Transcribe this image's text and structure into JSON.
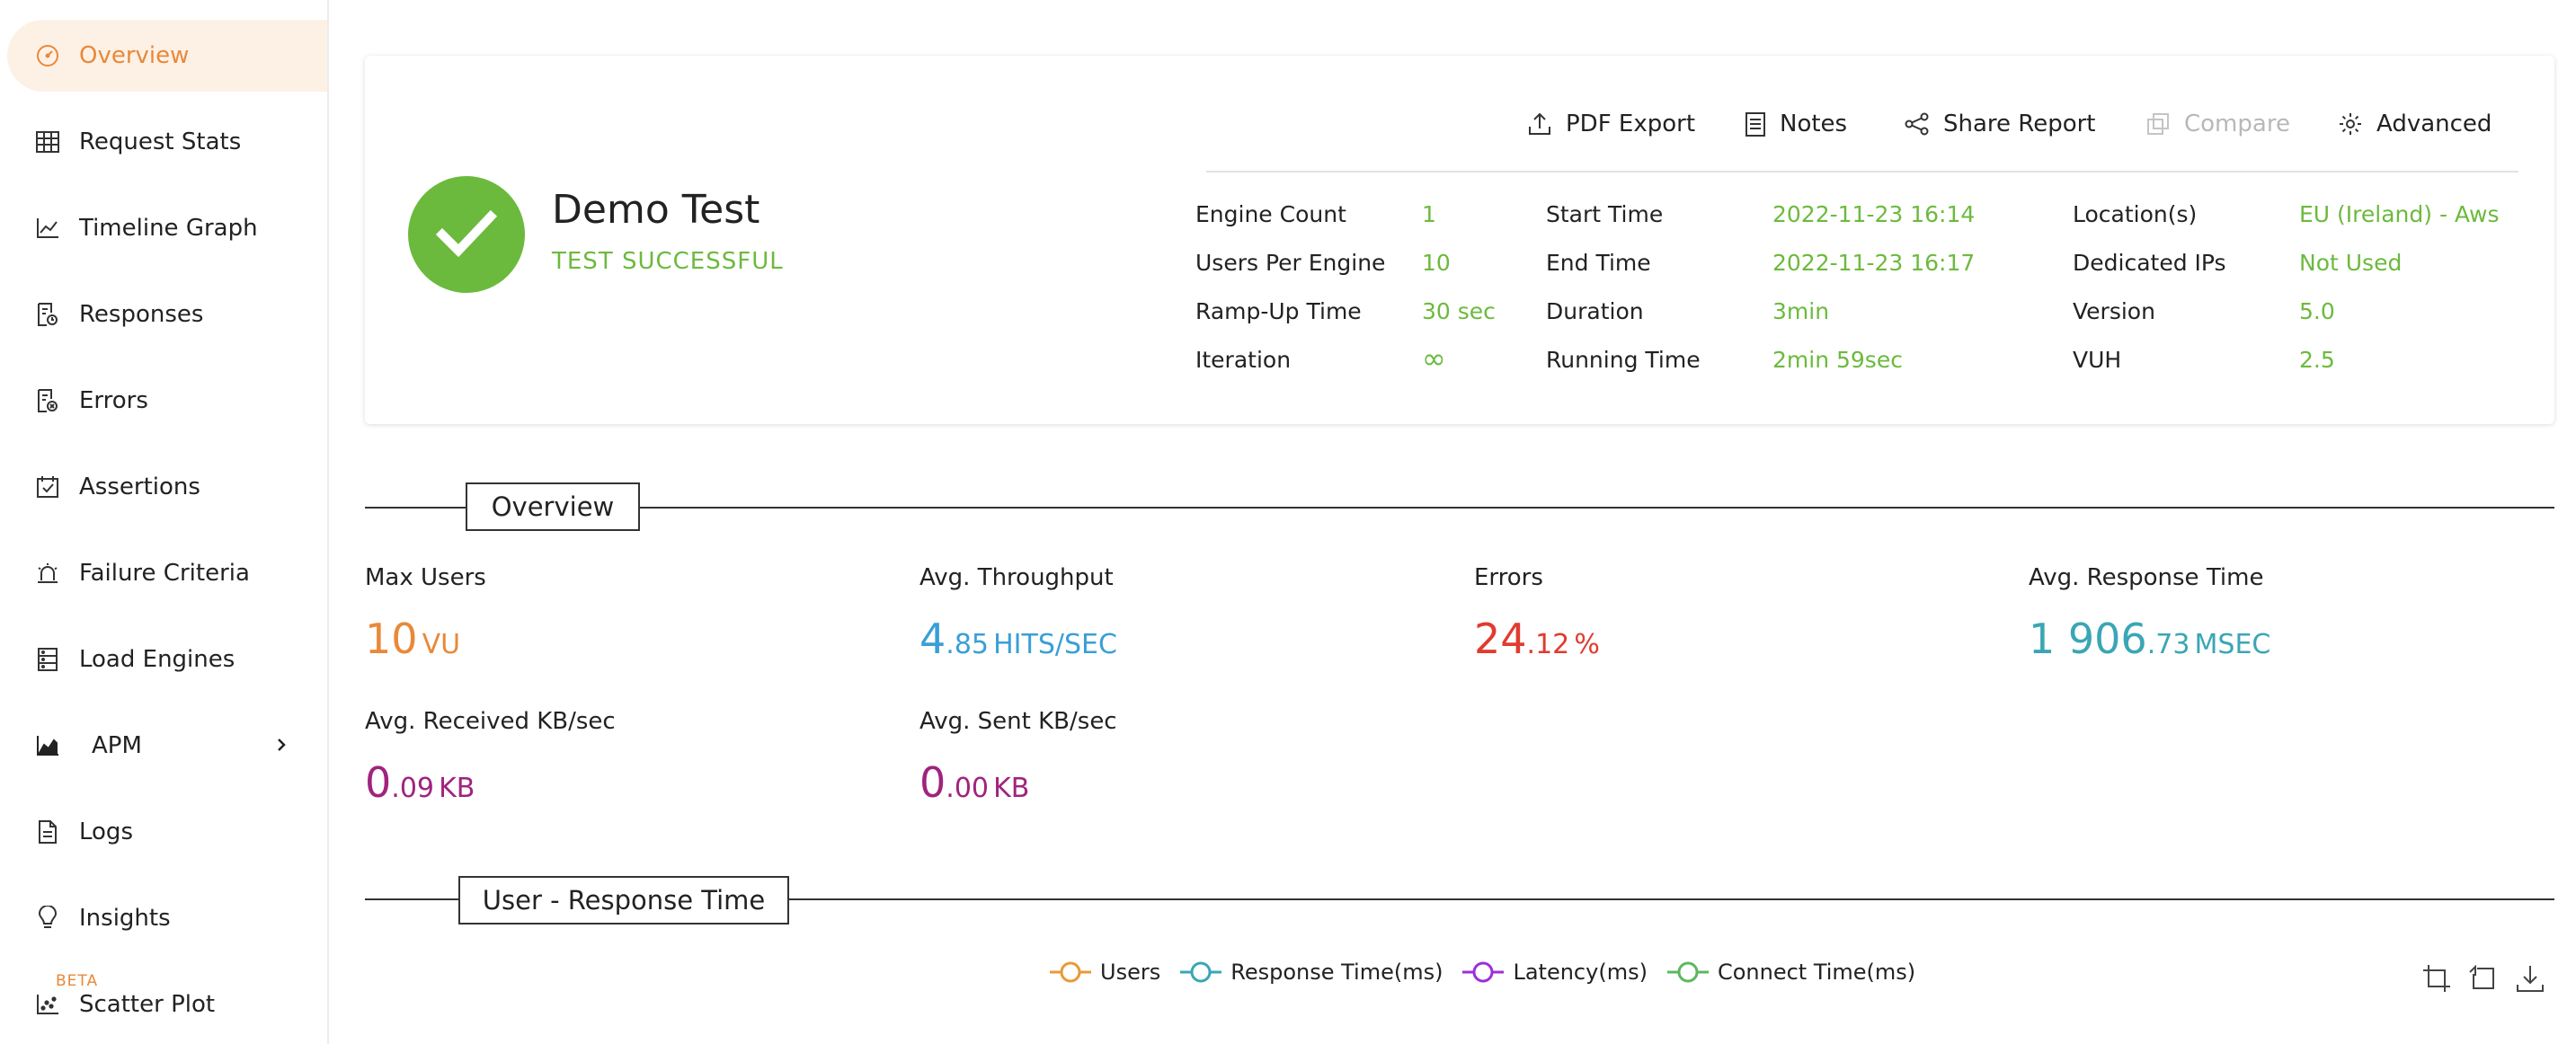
{
  "sidebar": {
    "items": [
      {
        "label": "Overview",
        "icon": "gauge-icon"
      },
      {
        "label": "Request Stats",
        "icon": "table-icon"
      },
      {
        "label": "Timeline Graph",
        "icon": "line-chart-icon"
      },
      {
        "label": "Responses",
        "icon": "response-doc-icon"
      },
      {
        "label": "Errors",
        "icon": "error-doc-icon"
      },
      {
        "label": "Assertions",
        "icon": "calendar-check-icon"
      },
      {
        "label": "Failure Criteria",
        "icon": "alarm-icon"
      },
      {
        "label": "Load Engines",
        "icon": "server-icon"
      },
      {
        "label": "APM",
        "icon": "area-chart-icon"
      },
      {
        "label": "Logs",
        "icon": "file-icon"
      },
      {
        "label": "Insights",
        "icon": "lightbulb-icon"
      },
      {
        "label": "Scatter Plot",
        "icon": "scatter-icon"
      }
    ],
    "beta_badge": "BETA"
  },
  "summary": {
    "test_name": "Demo Test",
    "status": "TEST SUCCESSFUL",
    "toolbar": {
      "pdf_export": "PDF Export",
      "notes": "Notes",
      "share_report": "Share Report",
      "compare": "Compare",
      "advanced": "Advanced"
    },
    "meta": {
      "engine_count_label": "Engine Count",
      "engine_count": "1",
      "users_per_engine_label": "Users Per Engine",
      "users_per_engine": "10",
      "ramp_up_label": "Ramp-Up Time",
      "ramp_up": "30 sec",
      "iteration_label": "Iteration",
      "iteration": "∞",
      "start_time_label": "Start Time",
      "start_time": "2022-11-23 16:14",
      "end_time_label": "End Time",
      "end_time": "2022-11-23 16:17",
      "duration_label": "Duration",
      "duration": "3min",
      "running_time_label": "Running Time",
      "running_time": "2min 59sec",
      "locations_label": "Location(s)",
      "locations": "EU (Ireland) - Aws",
      "dedicated_ips_label": "Dedicated IPs",
      "dedicated_ips": "Not Used",
      "version_label": "Version",
      "version": "5.0",
      "vuh_label": "VUH",
      "vuh": "2.5"
    }
  },
  "overview": {
    "title": "Overview",
    "kpis": {
      "max_users": {
        "label": "Max Users",
        "int": "10",
        "frac": "",
        "unit": "VU",
        "color": "#e8893a"
      },
      "throughput": {
        "label": "Avg. Throughput",
        "int": "4",
        "frac": ".85",
        "unit": "HITS/SEC",
        "color": "#3a9fd6"
      },
      "errors": {
        "label": "Errors",
        "int": "24",
        "frac": ".12",
        "unit": "%",
        "color": "#e03b2f"
      },
      "response_time": {
        "label": "Avg. Response Time",
        "int": "1 906",
        "frac": ".73",
        "unit": "MSEC",
        "color": "#3aa6b5"
      },
      "received": {
        "label": "Avg. Received KB/sec",
        "int": "0",
        "frac": ".09",
        "unit": "KB",
        "color": "#a0237d"
      },
      "sent": {
        "label": "Avg. Sent KB/sec",
        "int": "0",
        "frac": ".00",
        "unit": "KB",
        "color": "#a0237d"
      }
    }
  },
  "user_response": {
    "title": "User - Response Time",
    "legend": [
      {
        "label": "Users",
        "color": "#e8993a"
      },
      {
        "label": "Response Time(ms)",
        "color": "#3aa6b5"
      },
      {
        "label": "Latency(ms)",
        "color": "#9b30d9"
      },
      {
        "label": "Connect Time(ms)",
        "color": "#5cb85c"
      }
    ]
  }
}
